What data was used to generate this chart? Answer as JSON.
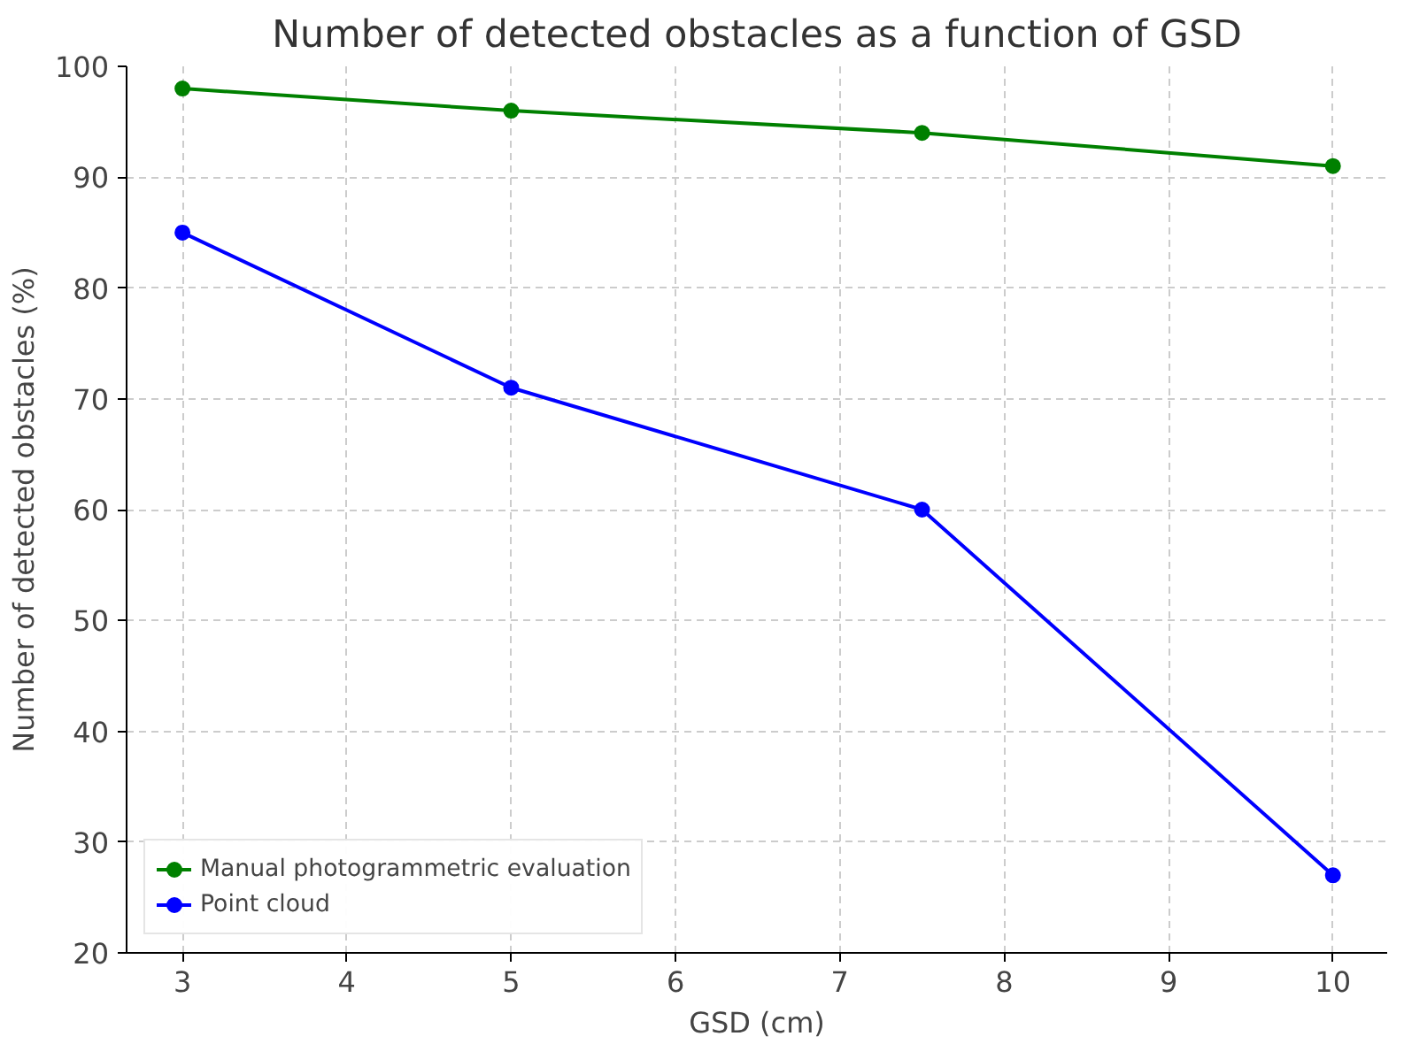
{
  "chart_data": {
    "type": "line",
    "title": "Number of detected obstacles as a function of GSD",
    "xlabel": "GSD (cm)",
    "ylabel": "Number of detected obstacles (%)",
    "x": [
      3,
      5,
      7.5,
      10
    ],
    "series": [
      {
        "name": "Manual photogrammetric evaluation",
        "color": "#008000",
        "values": [
          98,
          96,
          94,
          91
        ]
      },
      {
        "name": "Point cloud",
        "color": "#0000ff",
        "values": [
          85,
          71,
          60,
          27
        ]
      }
    ],
    "xlim": [
      2.66,
      10.33
    ],
    "ylim": [
      20,
      100
    ],
    "xticks": [
      3,
      4,
      5,
      6,
      7,
      8,
      9,
      10
    ],
    "yticks": [
      20,
      30,
      40,
      50,
      60,
      70,
      80,
      90,
      100
    ],
    "grid": true,
    "legend": "bottom left",
    "marker": "circle",
    "line_style": "solid"
  }
}
